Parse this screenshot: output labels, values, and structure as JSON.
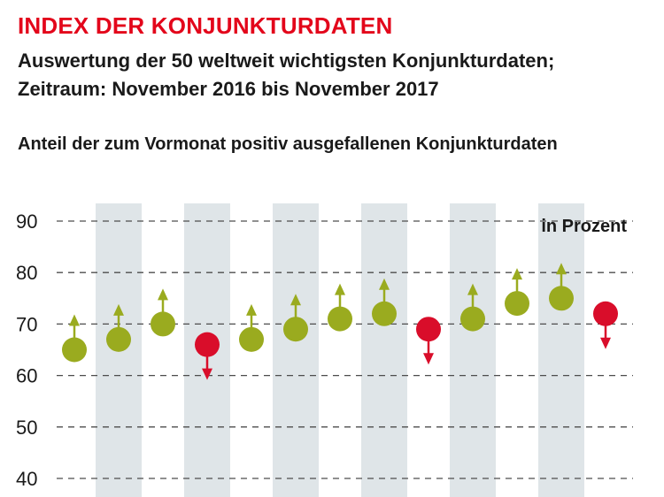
{
  "header": {
    "title": "INDEX DER KONJUNKTURDATEN",
    "subtitle_line1": "Auswertung der 50 weltweit wichtigsten Konjunkturdaten;",
    "subtitle_line2": "Zeitraum: November 2016 bis November 2017",
    "caption": "Anteil der zum Vormonat positiv ausgefallenen Konjunkturdaten"
  },
  "colors": {
    "title": "#e3061b",
    "up": "#9aab1f",
    "down": "#d90d2a",
    "band": "#dfe5e8",
    "grid": "#4d4d4d"
  },
  "chart_data": {
    "type": "scatter",
    "unit_label": "in Prozent",
    "ylim": [
      40,
      90
    ],
    "y_ticks": [
      90,
      80,
      70,
      60,
      50,
      40
    ],
    "grid": "dashed horizontal",
    "values": [
      65,
      67,
      70,
      66,
      67,
      69,
      71,
      72,
      69,
      71,
      74,
      75,
      72
    ],
    "direction": [
      "up",
      "up",
      "up",
      "down",
      "up",
      "up",
      "up",
      "up",
      "down",
      "up",
      "up",
      "up",
      "down"
    ]
  }
}
